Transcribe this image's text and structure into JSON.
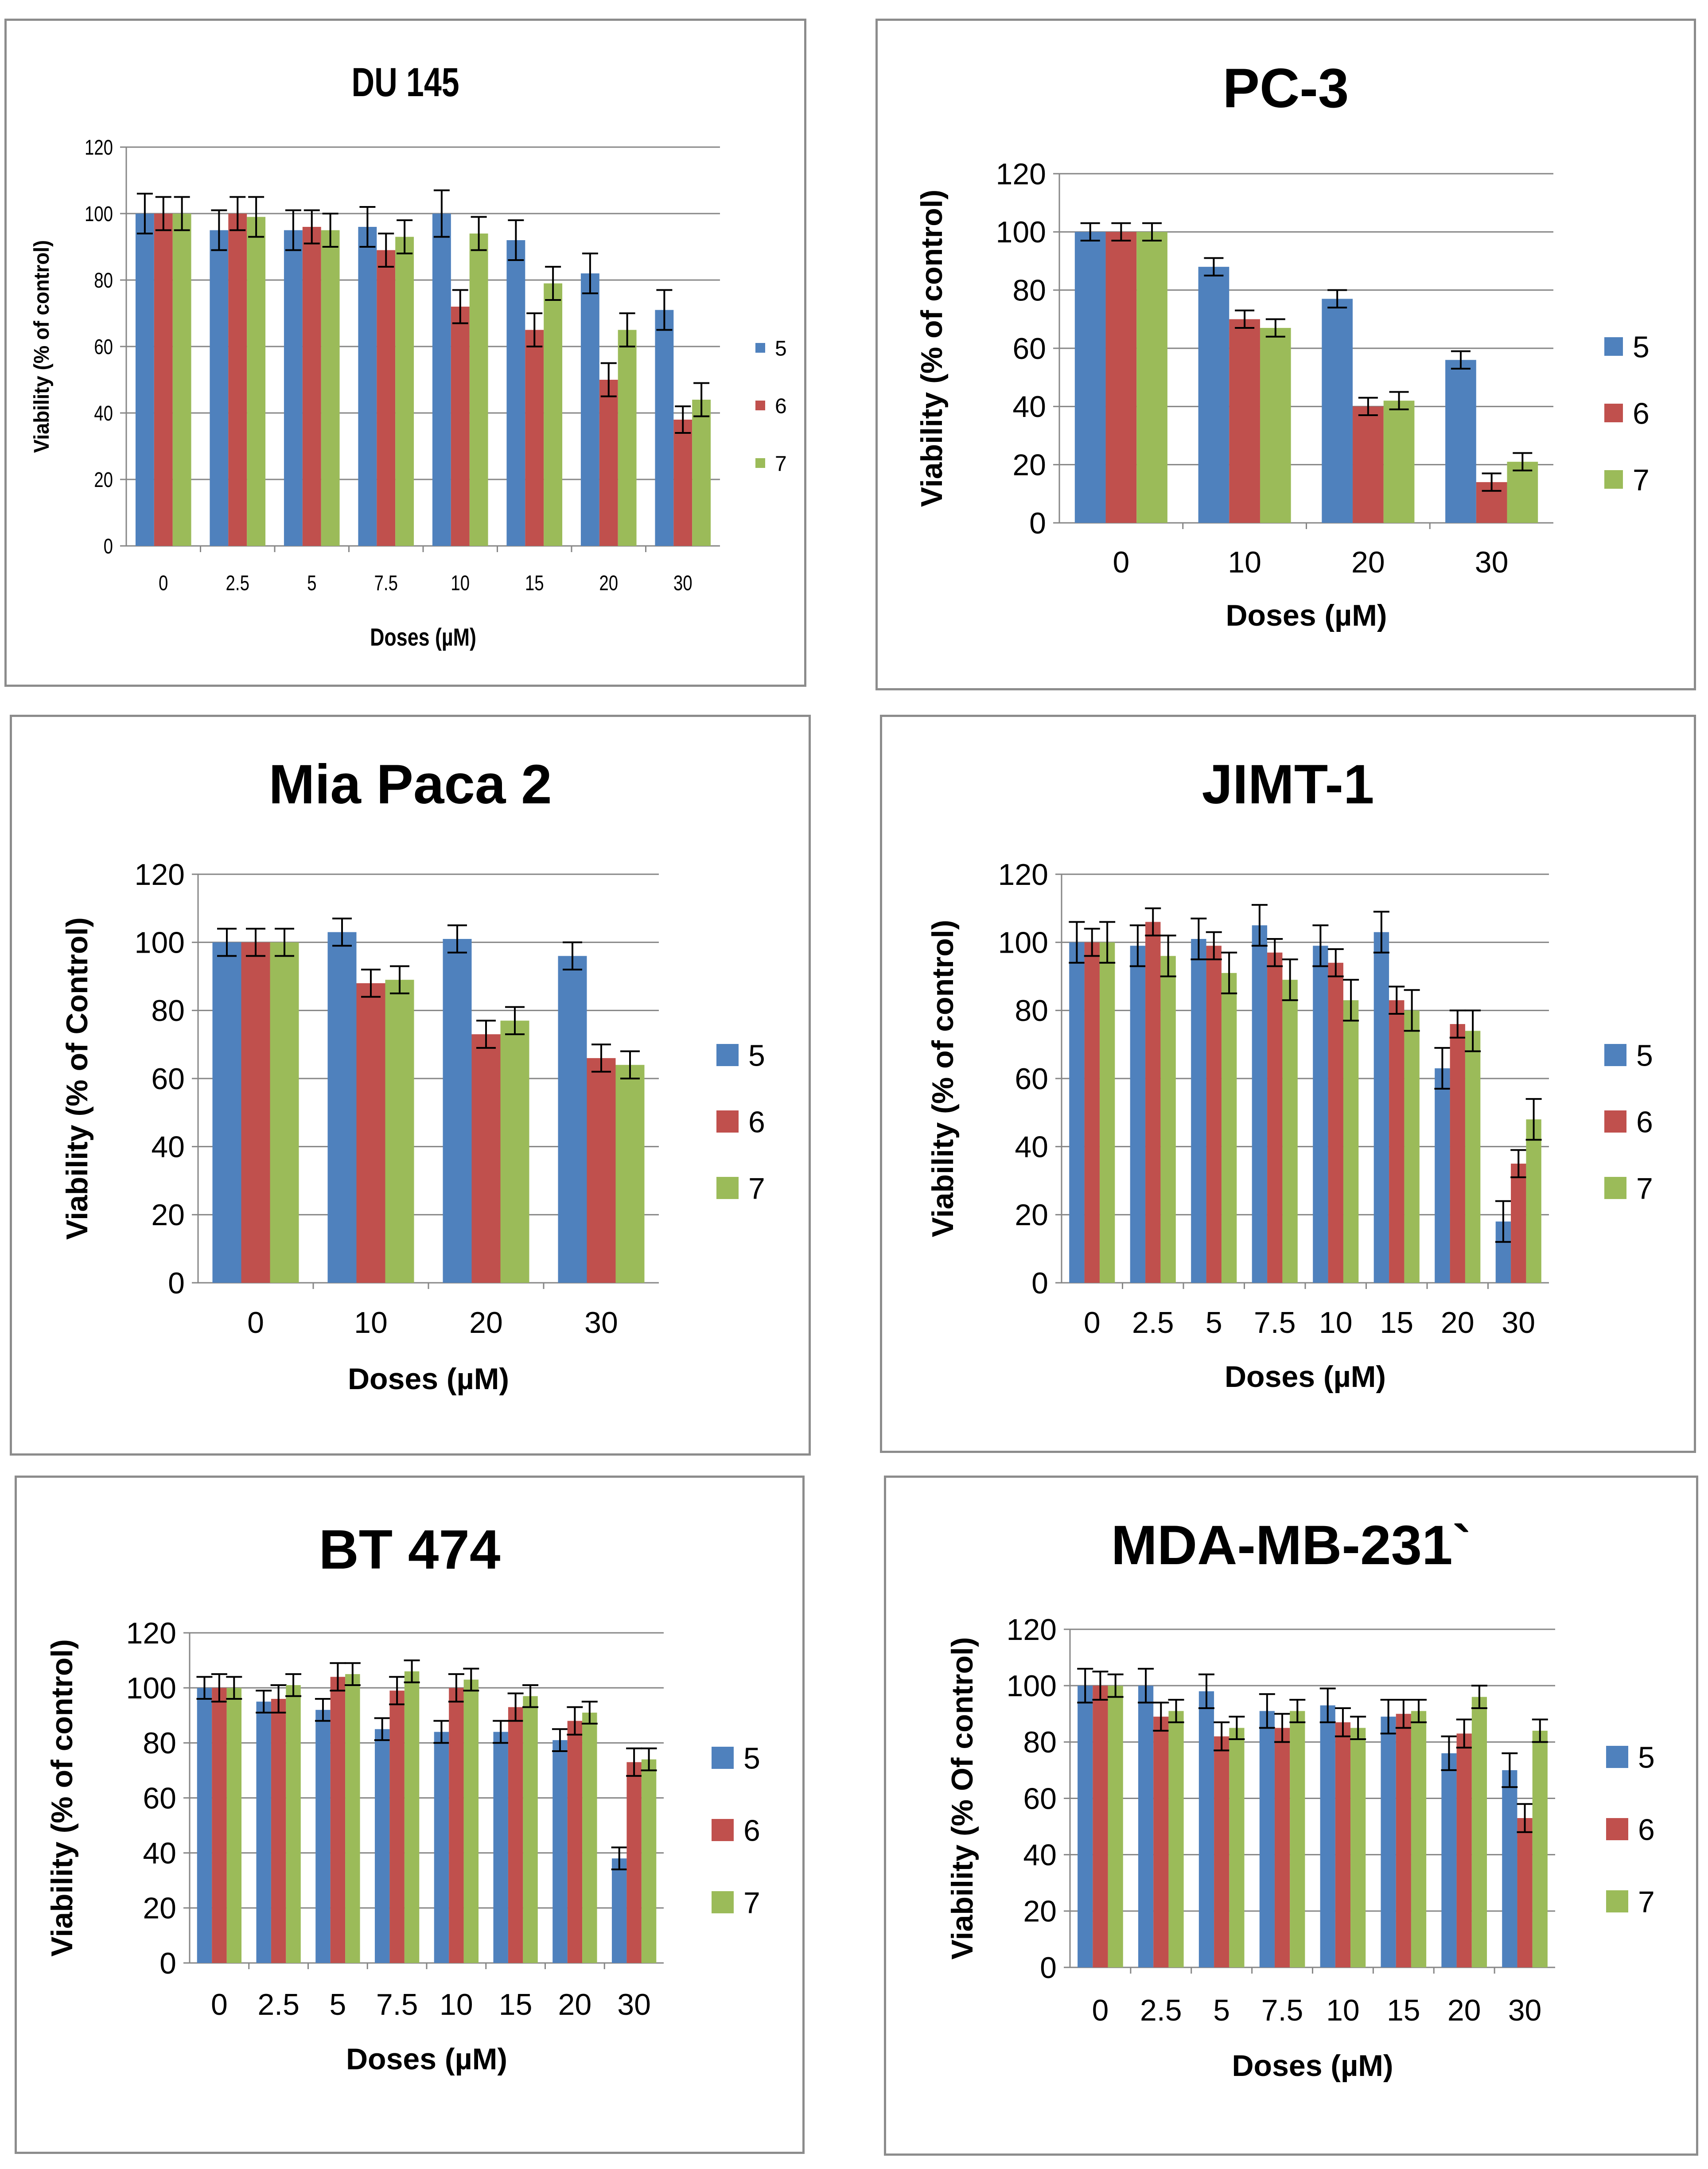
{
  "colors": {
    "s5": "#4f81bd",
    "s6": "#c0504d",
    "s7": "#9bbb59",
    "grid": "#868686",
    "axis": "#868686",
    "error": "#000000"
  },
  "chart_data": [
    {
      "type": "bar",
      "title": "DU 145",
      "xlabel": "Doses (µM)",
      "ylabel": "Viability (% of control)",
      "ylim": [
        0,
        120
      ],
      "yticks": [
        "0",
        "20",
        "40",
        "60",
        "80",
        "100",
        "120"
      ],
      "grid": true,
      "legend": "right",
      "categories": [
        "0",
        "2.5",
        "5",
        "7.5",
        "10",
        "15",
        "20",
        "30"
      ],
      "series": [
        {
          "name": "5",
          "values": [
            100,
            95,
            95,
            96,
            100,
            92,
            82,
            71
          ],
          "errors": [
            6,
            6,
            6,
            6,
            7,
            6,
            6,
            6
          ]
        },
        {
          "name": "6",
          "values": [
            100,
            100,
            96,
            89,
            72,
            65,
            50,
            38
          ],
          "errors": [
            5,
            5,
            5,
            5,
            5,
            5,
            5,
            4
          ]
        },
        {
          "name": "7",
          "values": [
            100,
            99,
            95,
            93,
            94,
            79,
            65,
            44
          ],
          "errors": [
            5,
            6,
            5,
            5,
            5,
            5,
            5,
            5
          ]
        }
      ]
    },
    {
      "type": "bar",
      "title": "PC-3",
      "xlabel": "Doses (µM)",
      "ylabel": "Viability (% of control)",
      "ylim": [
        0,
        120
      ],
      "yticks": [
        "0",
        "20",
        "40",
        "60",
        "80",
        "100",
        "120"
      ],
      "grid": true,
      "legend": "right",
      "categories": [
        "0",
        "10",
        "20",
        "30"
      ],
      "series": [
        {
          "name": "5",
          "values": [
            100,
            88,
            77,
            56
          ],
          "errors": [
            3,
            3,
            3,
            3
          ]
        },
        {
          "name": "6",
          "values": [
            100,
            70,
            40,
            14
          ],
          "errors": [
            3,
            3,
            3,
            3
          ]
        },
        {
          "name": "7",
          "values": [
            100,
            67,
            42,
            21
          ],
          "errors": [
            3,
            3,
            3,
            3
          ]
        }
      ]
    },
    {
      "type": "bar",
      "title": "Mia Paca 2",
      "xlabel": "Doses (µM)",
      "ylabel": "Viability (% of Control)",
      "ylim": [
        0,
        120
      ],
      "yticks": [
        "0",
        "20",
        "40",
        "60",
        "80",
        "100",
        "120"
      ],
      "grid": true,
      "legend": "right",
      "categories": [
        "0",
        "10",
        "20",
        "30"
      ],
      "series": [
        {
          "name": "5",
          "values": [
            100,
            103,
            101,
            96
          ],
          "errors": [
            4,
            4,
            4,
            4
          ]
        },
        {
          "name": "6",
          "values": [
            100,
            88,
            73,
            66
          ],
          "errors": [
            4,
            4,
            4,
            4
          ]
        },
        {
          "name": "7",
          "values": [
            100,
            89,
            77,
            64
          ],
          "errors": [
            4,
            4,
            4,
            4
          ]
        }
      ]
    },
    {
      "type": "bar",
      "title": "JIMT-1",
      "xlabel": "Doses (µM)",
      "ylabel": "Viability (% of control)",
      "ylim": [
        0,
        120
      ],
      "yticks": [
        "0",
        "20",
        "40",
        "60",
        "80",
        "100",
        "120"
      ],
      "grid": true,
      "legend": "right",
      "categories": [
        "0",
        "2.5",
        "5",
        "7.5",
        "10",
        "15",
        "20",
        "30"
      ],
      "series": [
        {
          "name": "5",
          "values": [
            100,
            99,
            101,
            105,
            99,
            103,
            63,
            18
          ],
          "errors": [
            6,
            6,
            6,
            6,
            6,
            6,
            6,
            6
          ]
        },
        {
          "name": "6",
          "values": [
            100,
            106,
            99,
            97,
            94,
            83,
            76,
            35
          ],
          "errors": [
            4,
            4,
            4,
            4,
            4,
            4,
            4,
            4
          ]
        },
        {
          "name": "7",
          "values": [
            100,
            96,
            91,
            89,
            83,
            80,
            74,
            48
          ],
          "errors": [
            6,
            6,
            6,
            6,
            6,
            6,
            6,
            6
          ]
        }
      ]
    },
    {
      "type": "bar",
      "title": "BT 474",
      "xlabel": "Doses (µM)",
      "ylabel": "Viability (% of control)",
      "ylim": [
        0,
        120
      ],
      "yticks": [
        "0",
        "20",
        "40",
        "60",
        "80",
        "100",
        "120"
      ],
      "grid": true,
      "legend": "right",
      "categories": [
        "0",
        "2.5",
        "5",
        "7.5",
        "10",
        "15",
        "20",
        "30"
      ],
      "series": [
        {
          "name": "5",
          "values": [
            100,
            95,
            92,
            85,
            84,
            84,
            81,
            38
          ],
          "errors": [
            4,
            4,
            4,
            4,
            4,
            4,
            4,
            4
          ]
        },
        {
          "name": "6",
          "values": [
            100,
            96,
            104,
            99,
            100,
            93,
            88,
            73
          ],
          "errors": [
            5,
            5,
            5,
            5,
            5,
            5,
            5,
            5
          ]
        },
        {
          "name": "7",
          "values": [
            100,
            101,
            105,
            106,
            103,
            97,
            91,
            74
          ],
          "errors": [
            4,
            4,
            4,
            4,
            4,
            4,
            4,
            4
          ]
        }
      ]
    },
    {
      "type": "bar",
      "title": "MDA-MB-231`",
      "xlabel": "Doses (µM)",
      "ylabel": "Viability (% Of control)",
      "ylim": [
        0,
        120
      ],
      "yticks": [
        "0",
        "20",
        "40",
        "60",
        "80",
        "100",
        "120"
      ],
      "grid": true,
      "legend": "right",
      "categories": [
        "0",
        "2.5",
        "5",
        "7.5",
        "10",
        "15",
        "20",
        "30"
      ],
      "series": [
        {
          "name": "5",
          "values": [
            100,
            100,
            98,
            91,
            93,
            89,
            76,
            70
          ],
          "errors": [
            6,
            6,
            6,
            6,
            6,
            6,
            6,
            6
          ]
        },
        {
          "name": "6",
          "values": [
            100,
            89,
            82,
            85,
            87,
            90,
            83,
            53
          ],
          "errors": [
            5,
            5,
            5,
            5,
            5,
            5,
            5,
            5
          ]
        },
        {
          "name": "7",
          "values": [
            100,
            91,
            85,
            91,
            85,
            91,
            96,
            84
          ],
          "errors": [
            4,
            4,
            4,
            4,
            4,
            4,
            4,
            4
          ]
        }
      ]
    }
  ]
}
